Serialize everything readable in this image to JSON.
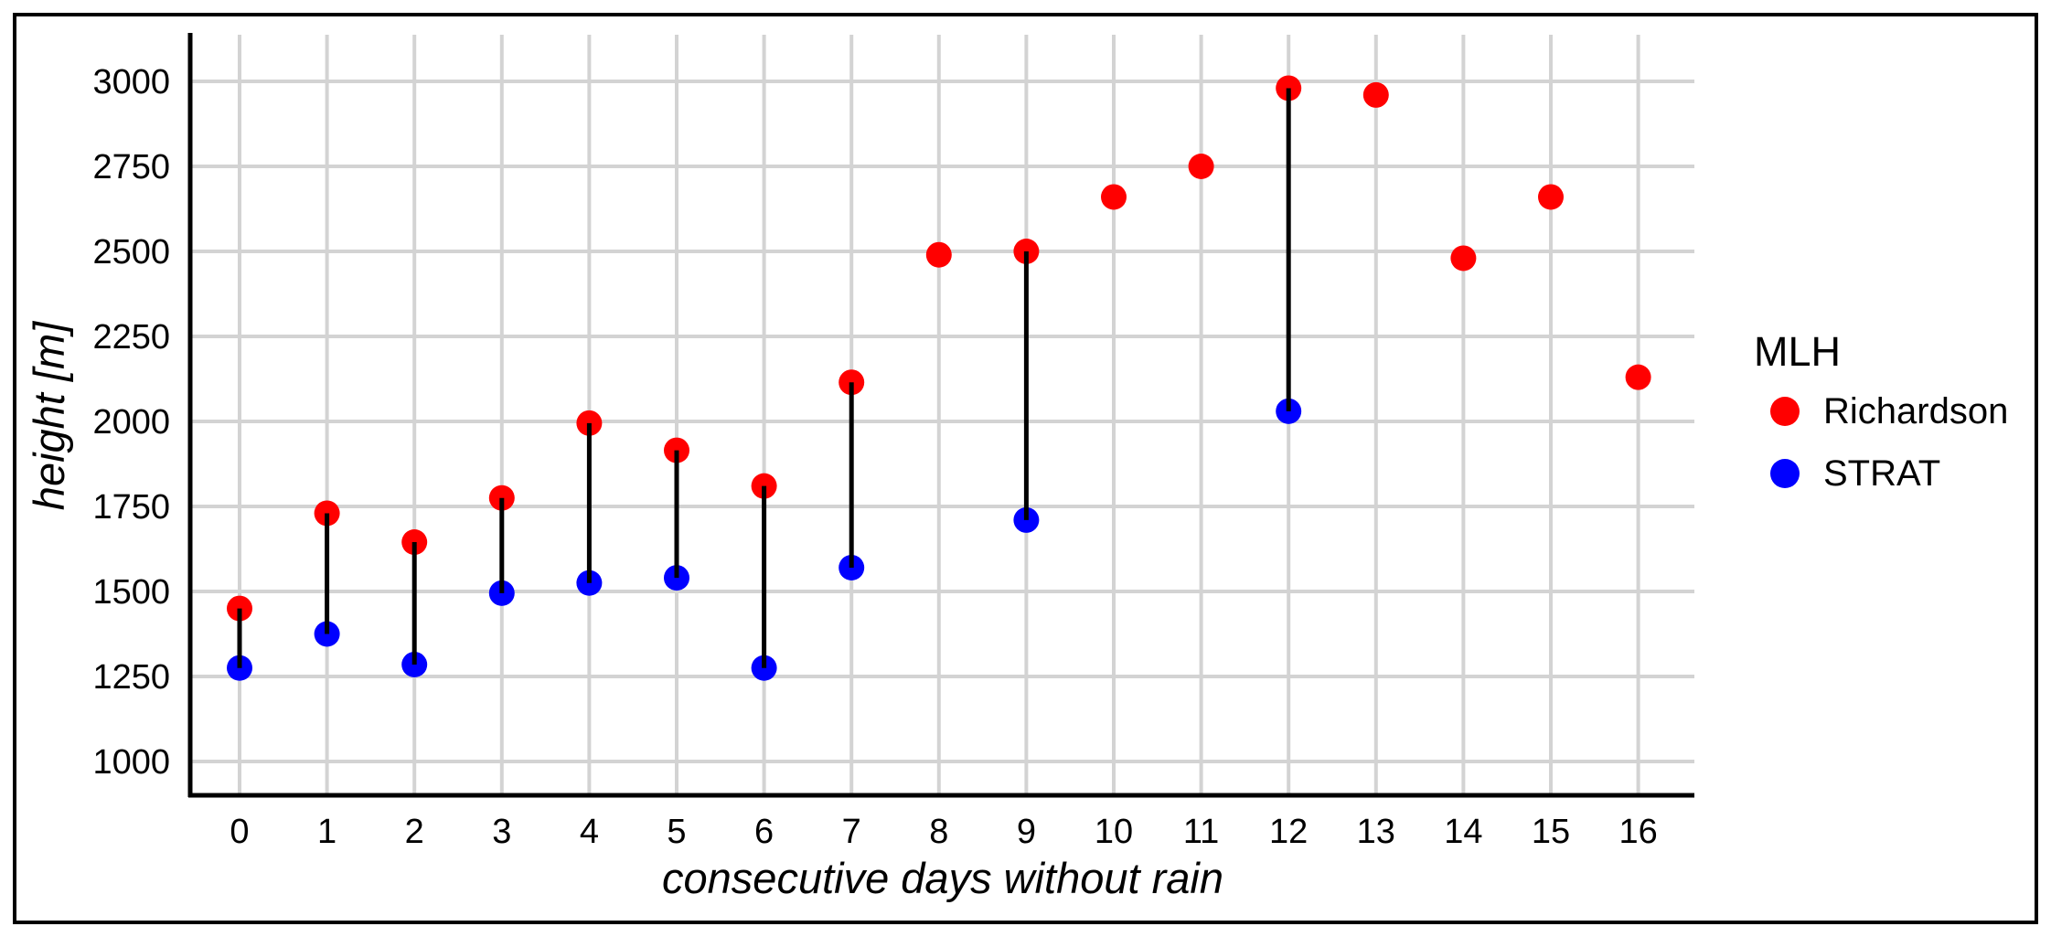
{
  "chart_data": {
    "type": "scatter",
    "title": "",
    "xlabel": "consecutive days without rain",
    "ylabel": "height [m]",
    "grid": "on",
    "legend": {
      "title": "MLH",
      "position": "right"
    },
    "x": [
      0,
      1,
      2,
      3,
      4,
      5,
      6,
      7,
      8,
      9,
      10,
      11,
      12,
      13,
      14,
      15,
      16
    ],
    "xtick_labels": [
      "0",
      "1",
      "2",
      "3",
      "4",
      "5",
      "6",
      "7",
      "8",
      "9",
      "10",
      "11",
      "12",
      "13",
      "14",
      "15",
      "16"
    ],
    "ytick_values": [
      1000,
      1250,
      1500,
      1750,
      2000,
      2250,
      2500,
      2750,
      3000
    ],
    "ytick_labels": [
      "1000",
      "1250",
      "1500",
      "1750",
      "2000",
      "2250",
      "2500",
      "2750",
      "3000"
    ],
    "ylim": [
      890,
      3060
    ],
    "connector_note": "vertical black segment joins Richardson and STRAT points on days where both exist",
    "series": [
      {
        "name": "Richardson",
        "color": "#ff0000",
        "values": [
          1450,
          1730,
          1645,
          1775,
          1995,
          1915,
          1810,
          2115,
          2490,
          2500,
          2660,
          2750,
          2980,
          2960,
          2480,
          2660,
          2130
        ]
      },
      {
        "name": "STRAT",
        "color": "#0000ff",
        "values": [
          1275,
          1375,
          1285,
          1495,
          1525,
          1540,
          1275,
          1570,
          null,
          1710,
          null,
          null,
          2030,
          null,
          null,
          null,
          null
        ]
      }
    ],
    "colors": {
      "grid": "#d3d3d3",
      "axis": "#000000",
      "connector": "#000000",
      "background": "#ffffff"
    }
  }
}
